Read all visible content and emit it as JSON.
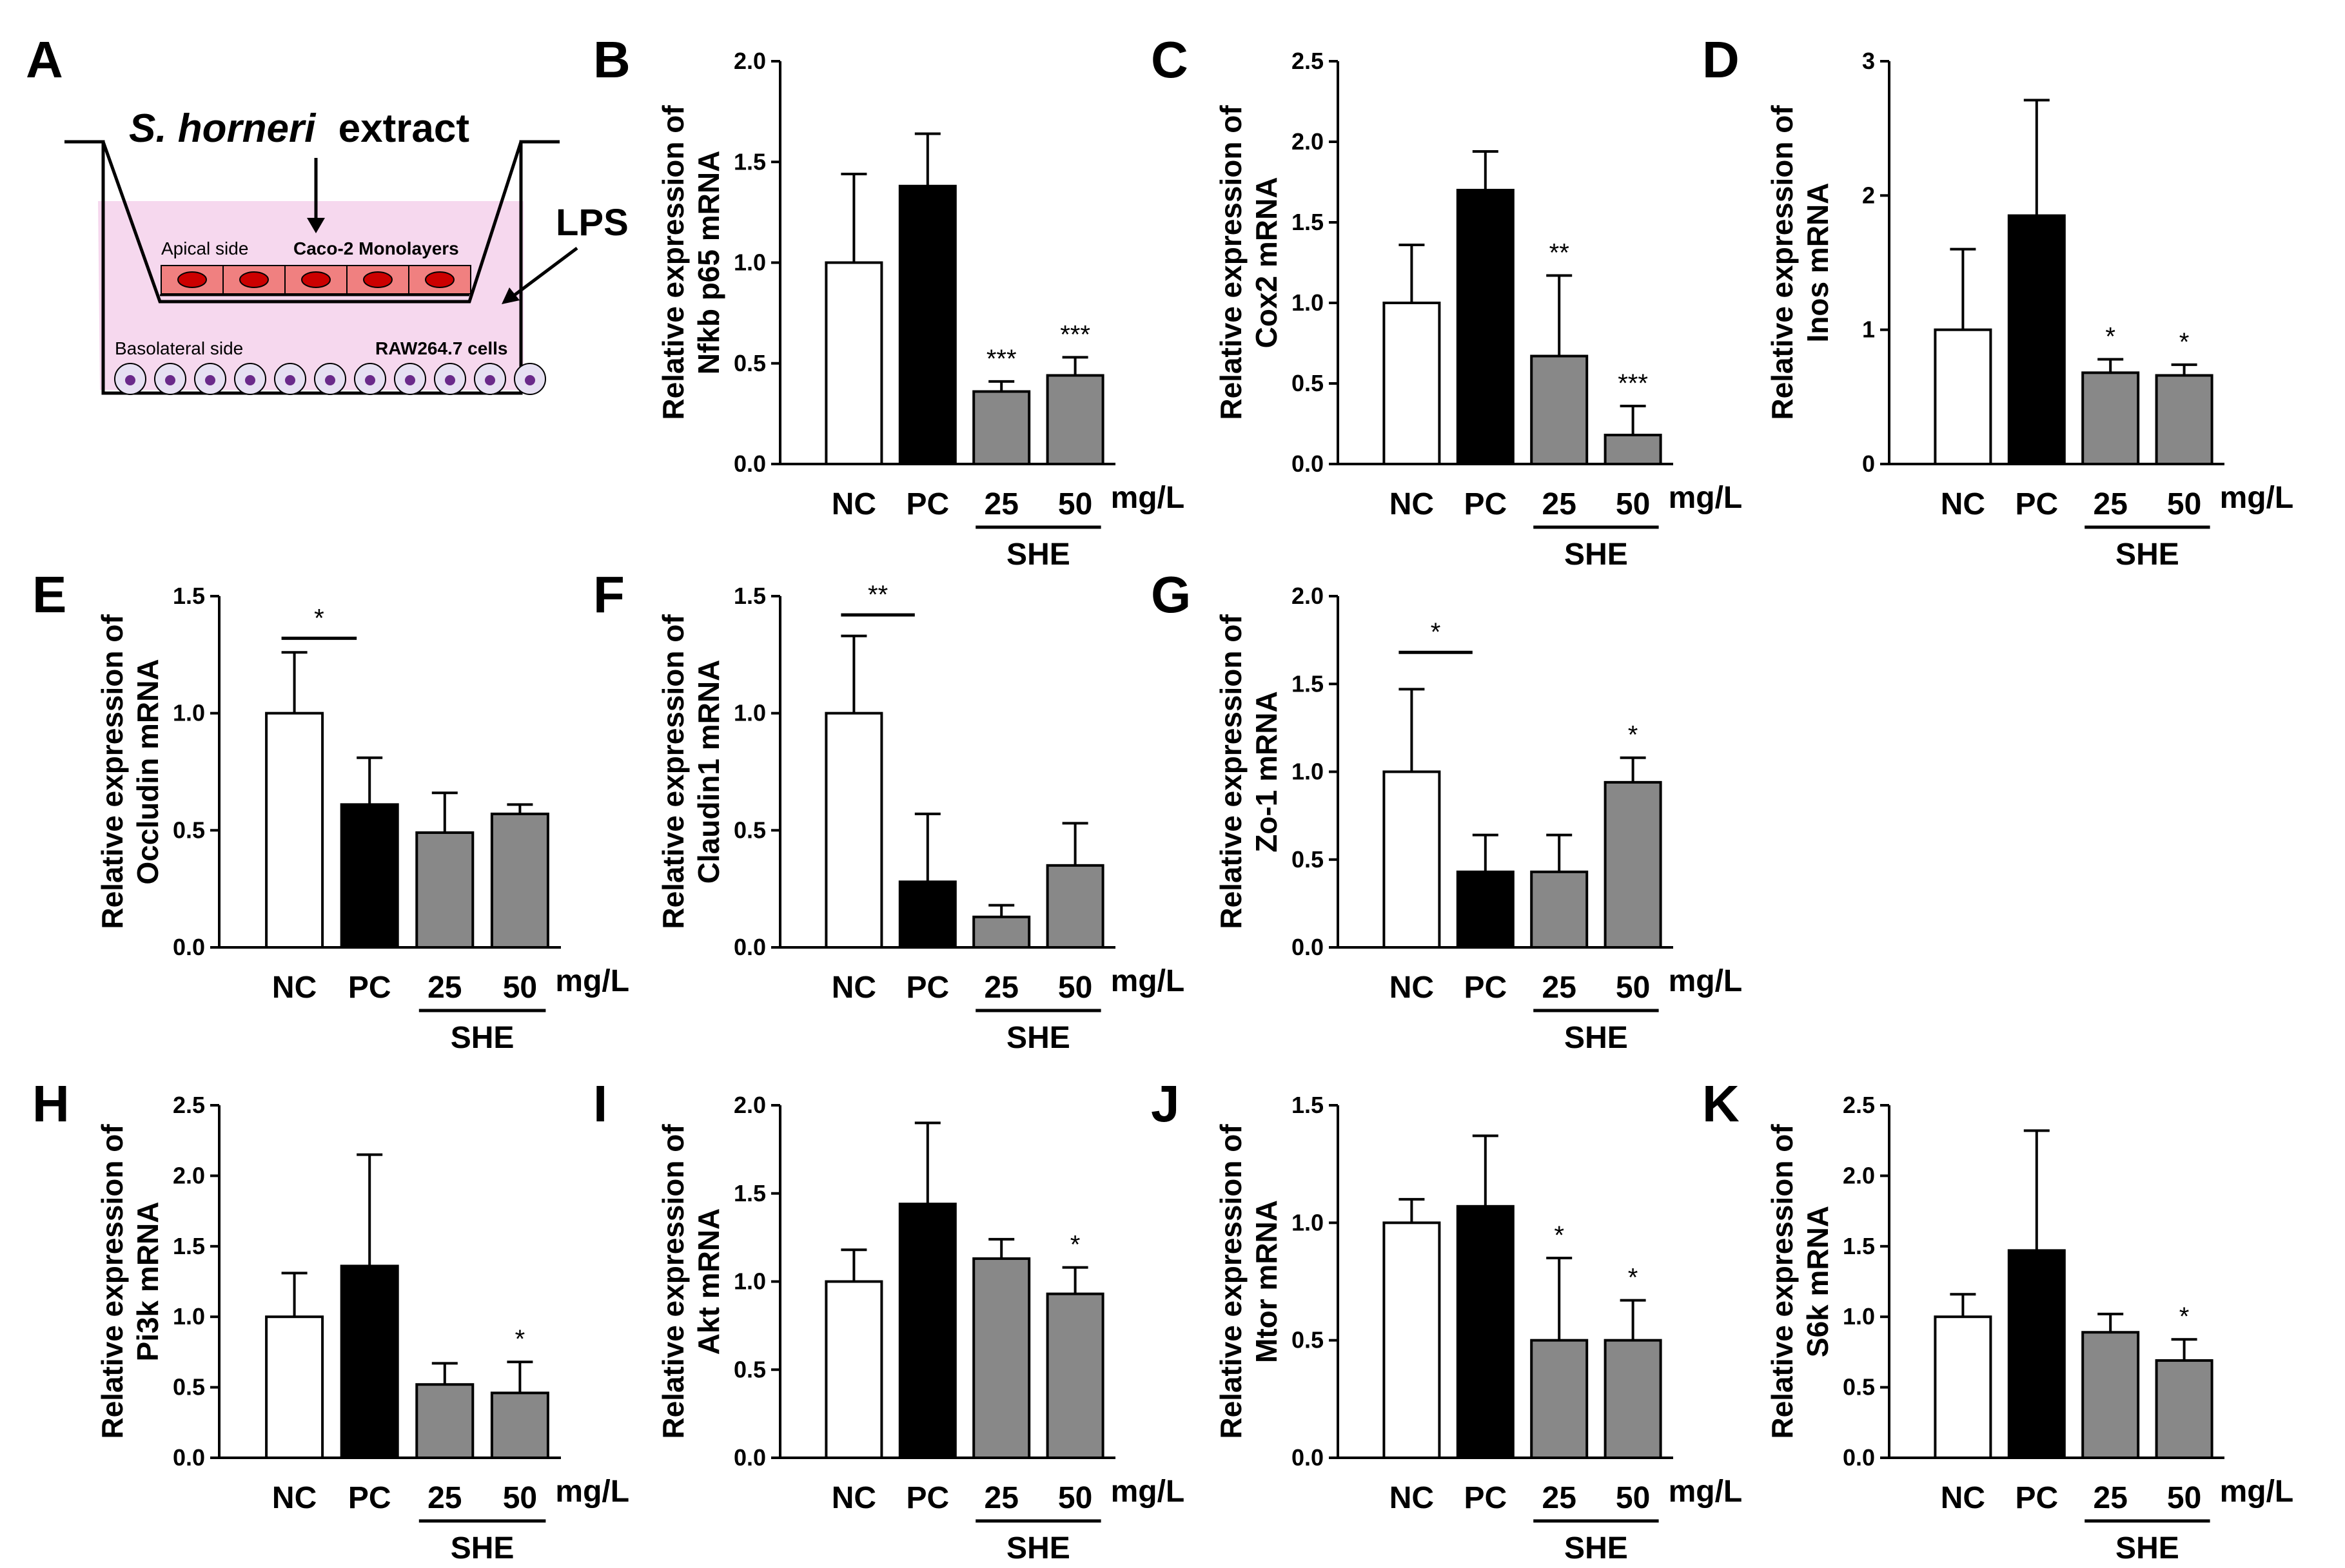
{
  "figure": {
    "group_label": "SHE",
    "unit_label": "mg/L",
    "colors": {
      "NC": "#ffffff",
      "PC": "#000000",
      "SHE": "#888888"
    }
  },
  "schematic": {
    "letter": "A",
    "title_italic": "S. horneri",
    "title_rest": "extract",
    "lps_label": "LPS",
    "apical_label": "Apical side",
    "monolayer_label": "Caco-2 Monolayers",
    "basolateral_label": "Basolateral side",
    "raw_label": "RAW264.7 cells",
    "colors": {
      "medium": "#f6d8ee",
      "epithelial": "#f08080",
      "nucleus_red": "#cc0000",
      "macrophage": "#e6e0f2",
      "nucleus_purple": "#6a2a8a"
    }
  },
  "chart_data": [
    {
      "letter": "B",
      "type": "bar",
      "ylabel_line1": "Relative expression of",
      "ylabel_line2": "Nfkb p65 mRNA",
      "categories": [
        "NC",
        "PC",
        "25",
        "50"
      ],
      "values": [
        1.0,
        1.38,
        0.36,
        0.44
      ],
      "errors": [
        0.44,
        0.26,
        0.05,
        0.09
      ],
      "significance": [
        "",
        "",
        "***",
        "***"
      ],
      "bracket": null,
      "ylim": [
        0,
        2.0
      ],
      "ticks": [
        "0.0",
        "0.5",
        "1.0",
        "1.5",
        "2.0"
      ]
    },
    {
      "letter": "C",
      "type": "bar",
      "ylabel_line1": "Relative expression of",
      "ylabel_line2": "Cox2 mRNA",
      "categories": [
        "NC",
        "PC",
        "25",
        "50"
      ],
      "values": [
        1.0,
        1.7,
        0.67,
        0.18
      ],
      "errors": [
        0.36,
        0.24,
        0.5,
        0.18
      ],
      "significance": [
        "",
        "",
        "**",
        "***"
      ],
      "bracket": null,
      "ylim": [
        0,
        2.5
      ],
      "ticks": [
        "0.0",
        "0.5",
        "1.0",
        "1.5",
        "2.0",
        "2.5"
      ]
    },
    {
      "letter": "D",
      "type": "bar",
      "ylabel_line1": "Relative expression of",
      "ylabel_line2": "Inos mRNA",
      "categories": [
        "NC",
        "PC",
        "25",
        "50"
      ],
      "values": [
        1.0,
        1.85,
        0.68,
        0.66
      ],
      "errors": [
        0.6,
        0.86,
        0.1,
        0.08
      ],
      "significance": [
        "",
        "",
        "*",
        "*"
      ],
      "bracket": null,
      "ylim": [
        0,
        3
      ],
      "ticks": [
        "0",
        "1",
        "2",
        "3"
      ]
    },
    {
      "letter": "E",
      "type": "bar",
      "ylabel_line1": "Relative expression of",
      "ylabel_line2": "Occludin mRNA",
      "categories": [
        "NC",
        "PC",
        "25",
        "50"
      ],
      "values": [
        1.0,
        0.61,
        0.49,
        0.57
      ],
      "errors": [
        0.26,
        0.2,
        0.17,
        0.04
      ],
      "significance": [
        "",
        "",
        "",
        ""
      ],
      "bracket": {
        "label": "*",
        "value": 1.32
      },
      "ylim": [
        0,
        1.5
      ],
      "ticks": [
        "0.0",
        "0.5",
        "1.0",
        "1.5"
      ]
    },
    {
      "letter": "F",
      "type": "bar",
      "ylabel_line1": "Relative expression of",
      "ylabel_line2": "Claudin1 mRNA",
      "categories": [
        "NC",
        "PC",
        "25",
        "50"
      ],
      "values": [
        1.0,
        0.28,
        0.13,
        0.35
      ],
      "errors": [
        0.33,
        0.29,
        0.05,
        0.18
      ],
      "significance": [
        "",
        "",
        "",
        ""
      ],
      "bracket": {
        "label": "**",
        "value": 1.42
      },
      "ylim": [
        0,
        1.5
      ],
      "ticks": [
        "0.0",
        "0.5",
        "1.0",
        "1.5"
      ]
    },
    {
      "letter": "G",
      "type": "bar",
      "ylabel_line1": "Relative expression of",
      "ylabel_line2": "Zo-1 mRNA",
      "categories": [
        "NC",
        "PC",
        "25",
        "50"
      ],
      "values": [
        1.0,
        0.43,
        0.43,
        0.94
      ],
      "errors": [
        0.47,
        0.21,
        0.21,
        0.14
      ],
      "significance": [
        "",
        "",
        "",
        "*"
      ],
      "bracket": {
        "label": "*",
        "value": 1.68
      },
      "ylim": [
        0,
        2.0
      ],
      "ticks": [
        "0.0",
        "0.5",
        "1.0",
        "1.5",
        "2.0"
      ]
    },
    {
      "letter": "H",
      "type": "bar",
      "ylabel_line1": "Relative expression of",
      "ylabel_line2": "Pi3k mRNA",
      "categories": [
        "NC",
        "PC",
        "25",
        "50"
      ],
      "values": [
        1.0,
        1.36,
        0.52,
        0.46
      ],
      "errors": [
        0.31,
        0.79,
        0.15,
        0.22
      ],
      "significance": [
        "",
        "",
        "",
        "*"
      ],
      "bracket": null,
      "ylim": [
        0,
        2.5
      ],
      "ticks": [
        "0.0",
        "0.5",
        "1.0",
        "1.5",
        "2.0",
        "2.5"
      ]
    },
    {
      "letter": "I",
      "type": "bar",
      "ylabel_line1": "Relative expression of",
      "ylabel_line2": "Akt mRNA",
      "categories": [
        "NC",
        "PC",
        "25",
        "50"
      ],
      "values": [
        1.0,
        1.44,
        1.13,
        0.93
      ],
      "errors": [
        0.18,
        0.46,
        0.11,
        0.15
      ],
      "significance": [
        "",
        "",
        "",
        "*"
      ],
      "bracket": null,
      "ylim": [
        0,
        2.0
      ],
      "ticks": [
        "0.0",
        "0.5",
        "1.0",
        "1.5",
        "2.0"
      ]
    },
    {
      "letter": "J",
      "type": "bar",
      "ylabel_line1": "Relative expression of",
      "ylabel_line2": "Mtor mRNA",
      "categories": [
        "NC",
        "PC",
        "25",
        "50"
      ],
      "values": [
        1.0,
        1.07,
        0.5,
        0.5
      ],
      "errors": [
        0.1,
        0.3,
        0.35,
        0.17
      ],
      "significance": [
        "",
        "",
        "*",
        "*"
      ],
      "bracket": null,
      "ylim": [
        0,
        1.5
      ],
      "ticks": [
        "0.0",
        "0.5",
        "1.0",
        "1.5"
      ]
    },
    {
      "letter": "K",
      "type": "bar",
      "ylabel_line1": "Relative expression of",
      "ylabel_line2": "S6k mRNA",
      "categories": [
        "NC",
        "PC",
        "25",
        "50"
      ],
      "values": [
        1.0,
        1.47,
        0.89,
        0.69
      ],
      "errors": [
        0.16,
        0.85,
        0.13,
        0.15
      ],
      "significance": [
        "",
        "",
        "",
        "*"
      ],
      "bracket": null,
      "ylim": [
        0,
        2.5
      ],
      "ticks": [
        "0.0",
        "0.5",
        "1.0",
        "1.5",
        "2.0",
        "2.5"
      ]
    }
  ]
}
